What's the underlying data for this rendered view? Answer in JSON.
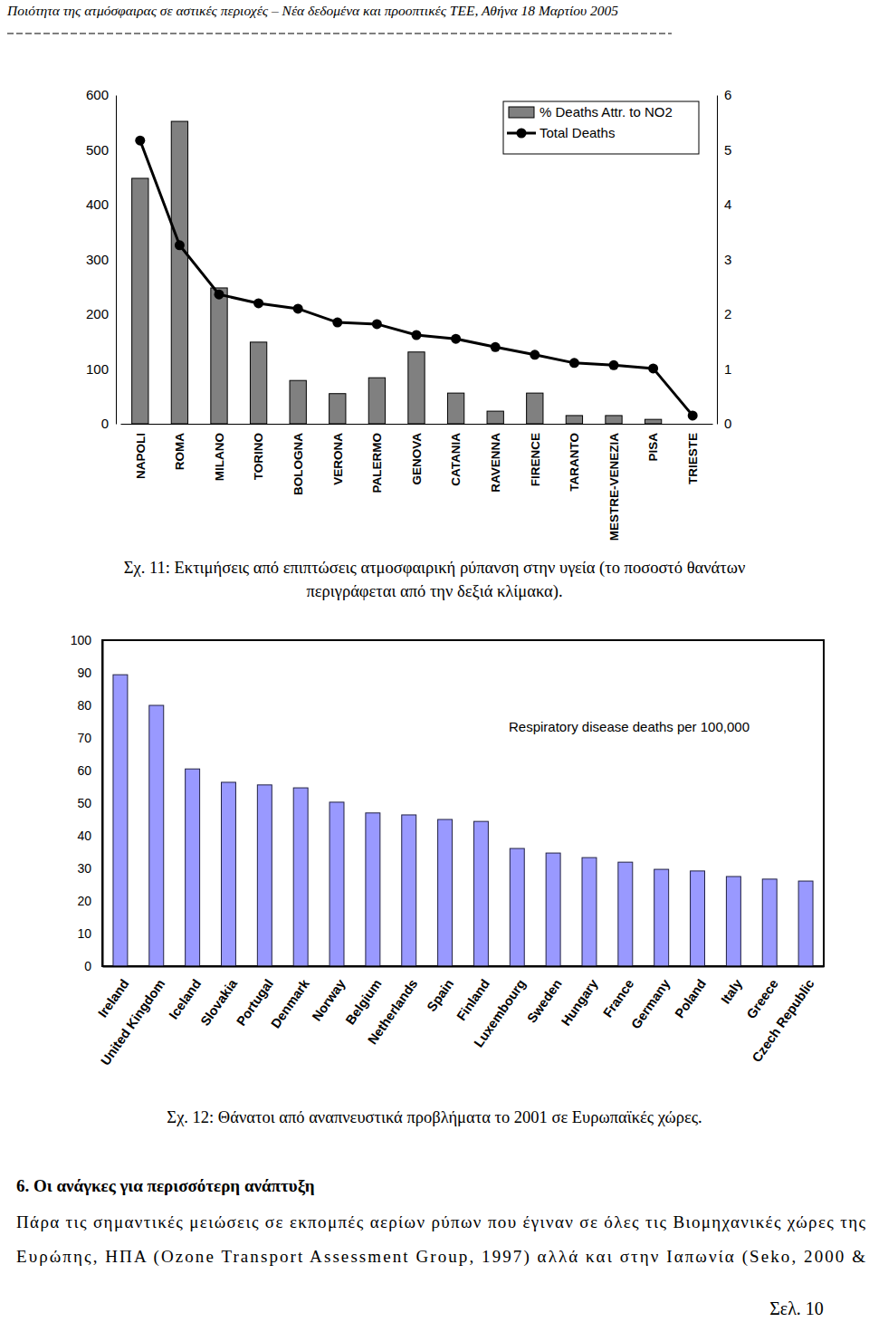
{
  "header": {
    "title": "Ποιότητα της ατμόσφαιρας σε αστικές περιοχές – Νέα δεδομένα και προοπτικές ΤΕΕ, Αθήνα 18 Μαρτίου 2005"
  },
  "chart_data": [
    {
      "type": "bar",
      "categories": [
        "NAPOLI",
        "ROMA",
        "MILANO",
        "TORINO",
        "BOLOGNA",
        "VERONA",
        "PALERMO",
        "GENOVA",
        "CATANIA",
        "RAVENNA",
        "FIRENCE",
        "TARANTO",
        "MESTRE-VENEZIA",
        "PISA",
        "TRIESTE"
      ],
      "series": [
        {
          "name": "% Deaths Attr. to NO2",
          "type": "bar",
          "axis": "y2",
          "color": "#808080",
          "values": [
            4.48,
            5.52,
            2.48,
            1.49,
            0.79,
            0.55,
            0.84,
            1.31,
            0.56,
            0.23,
            0.56,
            0.15,
            0.15,
            0.08,
            0
          ]
        },
        {
          "name": "Total Deaths",
          "type": "line",
          "color": "#000000",
          "marker": "circle",
          "values": [
            517,
            326,
            236,
            220,
            210,
            185,
            182,
            162,
            155,
            140,
            126,
            111,
            107,
            101,
            15
          ]
        }
      ],
      "ylim": [
        0,
        600
      ],
      "yticks": [
        0,
        100,
        200,
        300,
        400,
        500,
        600
      ],
      "y2lim": [
        0,
        6
      ],
      "y2ticks": [
        0,
        1,
        2,
        3,
        4,
        5,
        6
      ],
      "legend": "top-right"
    },
    {
      "type": "bar",
      "title": "Respiratory disease deaths per 100,000",
      "categories": [
        "Ireland",
        "United Kingdom",
        "Iceland",
        "Slovakia",
        "Portugal",
        "Denmark",
        "Norway",
        "Belgium",
        "Netherlands",
        "Spain",
        "Finland",
        "Luxembourg",
        "Sweden",
        "Hungary",
        "France",
        "Germany",
        "Poland",
        "Italy",
        "Greece",
        "Czech Republic"
      ],
      "values": [
        89.4,
        80,
        60.5,
        56.4,
        55.6,
        54.7,
        50.3,
        47,
        46.4,
        45,
        44.4,
        36.1,
        34.7,
        33.3,
        31.9,
        29.7,
        29.2,
        27.5,
        26.7,
        26.1
      ],
      "color": "#9999ff",
      "ylim": [
        0,
        100
      ],
      "yticks": [
        0,
        10,
        20,
        30,
        40,
        50,
        60,
        70,
        80,
        90,
        100
      ]
    }
  ],
  "captions": [
    [
      "Σχ. 11: Εκτιμήσεις από επιπτώσεις ατμοσφαιρική ρύπανση στην υγεία (το ποσοστό θανάτων",
      "περιγράφεται από την δεξιά κλίμακα)."
    ],
    [
      "Σχ. 12: Θάνατοι από αναπνευστικά προβλήματα το 2001 σε Ευρωπαϊκές χώρες."
    ]
  ],
  "section": {
    "heading": "6. Οι ανάγκες για περισσότερη ανάπτυξη",
    "paragraph": [
      "Πάρα τις σημαντικές μειώσεις σε εκπομπές αερίων ρύπων που έγιναν σε όλες τις Βιομηχανικές χώρες της",
      "Ευρώπης, ΗΠΑ (Ozone Transport Assessment Group, 1997) αλλά και στην Ιαπωνία (Seko, 2000 &"
    ]
  },
  "footer": {
    "page": "Σελ. 10"
  }
}
